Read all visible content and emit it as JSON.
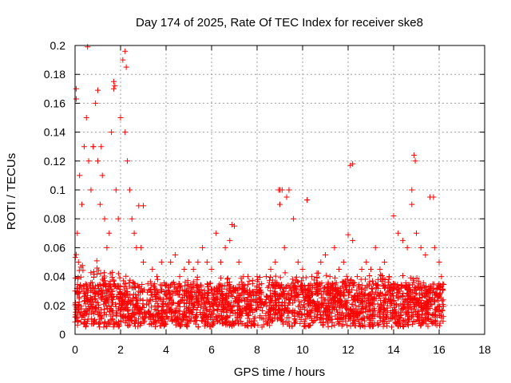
{
  "chart_data": {
    "type": "scatter",
    "title": "Day 174 of 2025, Rate Of TEC Index for receiver ske8",
    "xlabel": "GPS time / hours",
    "ylabel": "ROTI / TECUs",
    "xlim": [
      0,
      18
    ],
    "ylim": [
      0,
      0.2
    ],
    "x_ticks": [
      0,
      2,
      4,
      6,
      8,
      10,
      12,
      14,
      16,
      18
    ],
    "y_ticks": [
      0,
      0.02,
      0.04,
      0.06,
      0.08,
      0.1,
      0.12,
      0.14,
      0.16,
      0.18,
      0.2
    ],
    "x_tick_labels": [
      "0",
      "2",
      "4",
      "6",
      "8",
      "10",
      "12",
      "14",
      "16",
      "18"
    ],
    "y_tick_labels": [
      "0",
      "0.02",
      "0.04",
      "0.06",
      "0.08",
      "0.1",
      "0.12",
      "0.14",
      "0.16",
      "0.18",
      "0.2"
    ],
    "grid": true,
    "marker": "+",
    "marker_color": "#ff0000",
    "series": [
      {
        "name": "ROTI",
        "x": [
          0.0,
          0.05,
          0.1,
          0.15,
          0.2,
          0.3,
          0.4,
          0.5,
          0.6,
          0.7,
          0.8,
          0.9,
          1.0,
          1.1,
          1.2,
          1.3,
          1.4,
          1.5,
          1.6,
          1.7,
          1.8,
          1.9,
          2.0,
          2.1,
          2.2,
          2.3,
          2.4,
          2.5,
          2.6,
          2.7,
          2.8,
          2.9,
          3.0,
          3.2,
          3.4,
          3.6,
          3.8,
          4.0,
          4.2,
          4.4,
          4.6,
          4.8,
          5.0,
          5.2,
          5.4,
          5.6,
          5.8,
          6.0,
          6.2,
          6.4,
          6.6,
          6.8,
          7.0,
          7.2,
          7.4,
          7.6,
          7.8,
          8.0,
          8.2,
          8.4,
          8.6,
          8.8,
          9.0,
          9.1,
          9.2,
          9.4,
          9.6,
          9.8,
          10.0,
          10.2,
          10.4,
          10.6,
          10.8,
          11.0,
          11.2,
          11.4,
          11.6,
          11.8,
          12.0,
          12.1,
          12.2,
          12.4,
          12.6,
          12.8,
          13.0,
          13.2,
          13.4,
          13.6,
          13.8,
          14.0,
          14.2,
          14.4,
          14.6,
          14.8,
          14.9,
          15.0,
          15.2,
          15.4,
          15.6,
          15.8,
          16.0,
          16.1,
          0.55,
          1.0,
          2.2,
          2.25,
          0.05,
          1.7,
          1.75,
          9.0,
          9.3,
          10.2,
          12.2,
          14.95,
          14.8,
          15.75,
          6.9,
          8.95,
          3.0,
          0.8,
          1.15
        ],
        "y": [
          0.03,
          0.17,
          0.07,
          0.05,
          0.11,
          0.09,
          0.13,
          0.15,
          0.12,
          0.1,
          0.13,
          0.16,
          0.12,
          0.09,
          0.11,
          0.08,
          0.06,
          0.07,
          0.14,
          0.17,
          0.1,
          0.08,
          0.15,
          0.19,
          0.14,
          0.12,
          0.1,
          0.08,
          0.07,
          0.06,
          0.089,
          0.06,
          0.05,
          0.035,
          0.045,
          0.04,
          0.05,
          0.03,
          0.05,
          0.055,
          0.04,
          0.045,
          0.05,
          0.045,
          0.05,
          0.06,
          0.05,
          0.045,
          0.07,
          0.05,
          0.06,
          0.065,
          0.075,
          0.05,
          0.04,
          0.04,
          0.035,
          0.04,
          0.035,
          0.04,
          0.045,
          0.05,
          0.09,
          0.1,
          0.06,
          0.1,
          0.08,
          0.05,
          0.045,
          0.093,
          0.04,
          0.035,
          0.05,
          0.055,
          0.04,
          0.06,
          0.045,
          0.05,
          0.069,
          0.117,
          0.065,
          0.04,
          0.045,
          0.05,
          0.045,
          0.06,
          0.045,
          0.05,
          0.04,
          0.082,
          0.07,
          0.065,
          0.06,
          0.09,
          0.124,
          0.07,
          0.06,
          0.055,
          0.095,
          0.06,
          0.05,
          0.04,
          0.199,
          0.169,
          0.196,
          0.185,
          0.163,
          0.175,
          0.172,
          0.1,
          0.095,
          0.093,
          0.118,
          0.12,
          0.1,
          0.095,
          0.076,
          0.1,
          0.089,
          0.13,
          0.13
        ]
      }
    ],
    "background_band": {
      "x_range": [
        0,
        16.2
      ],
      "y_min": 0.005,
      "y_max": 0.035,
      "note": "dense cloud of ROTI samples"
    }
  }
}
